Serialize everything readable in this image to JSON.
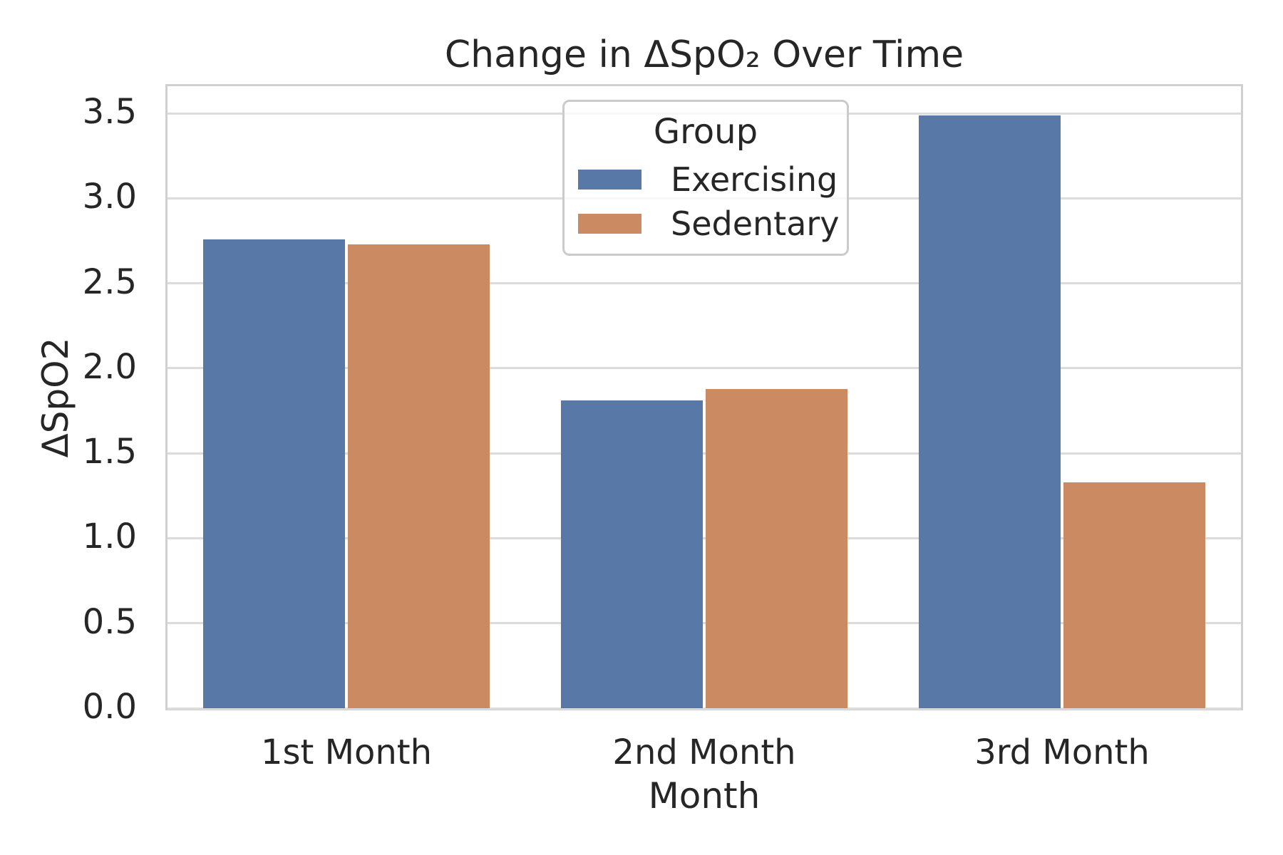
{
  "chart_data": {
    "type": "bar",
    "title": "Change in ΔSpO₂ Over Time",
    "xlabel": "Month",
    "ylabel": "ΔSpO2",
    "categories": [
      "1st Month",
      "2nd Month",
      "3rd Month"
    ],
    "series": [
      {
        "name": "Exercising",
        "color": "#5878A8",
        "values": [
          2.76,
          1.81,
          3.49
        ]
      },
      {
        "name": "Sedentary",
        "color": "#CC8A63",
        "values": [
          2.73,
          1.88,
          1.33
        ]
      }
    ],
    "ylim": [
      0,
      3.66
    ],
    "ytick_labels": [
      "0.0",
      "0.5",
      "1.0",
      "1.5",
      "2.0",
      "2.5",
      "3.0",
      "3.5"
    ],
    "grid": "horizontal",
    "legend": {
      "title": "Group",
      "position": "upper-center"
    }
  },
  "style": {
    "background": "#FFFFFF",
    "grid_color": "#DCDCDC",
    "spine_color": "#D0D0D0",
    "text_color": "#262626",
    "legend_border_color": "#CBCBCB"
  }
}
